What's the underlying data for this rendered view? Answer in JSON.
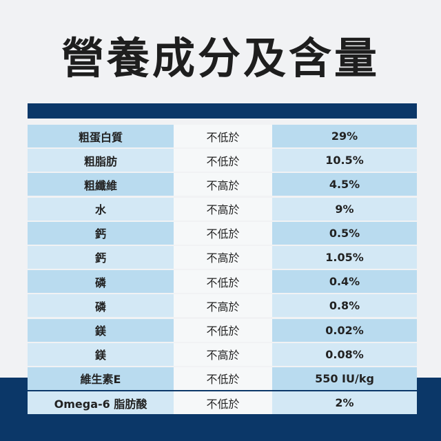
{
  "title": "營養成分及含量",
  "table": {
    "rows": [
      [
        "粗蛋白質",
        "不低於",
        "29%"
      ],
      [
        "粗脂肪",
        "不低於",
        "10.5%"
      ],
      [
        "粗纖維",
        "不高於",
        "4.5%"
      ],
      [
        "水",
        "不高於",
        "9%"
      ],
      [
        "鈣",
        "不低於",
        "0.5%"
      ],
      [
        "鈣",
        "不高於",
        "1.05%"
      ],
      [
        "磷",
        "不低於",
        "0.4%"
      ],
      [
        "磷",
        "不高於",
        "0.8%"
      ],
      [
        "鎂",
        "不低於",
        "0.02%"
      ],
      [
        "鎂",
        "不高於",
        "0.08%"
      ],
      [
        "維生素E",
        "不低於",
        "550 IU/kg"
      ],
      [
        "Omega-6 脂肪酸",
        "不低於",
        "2%"
      ]
    ]
  }
}
